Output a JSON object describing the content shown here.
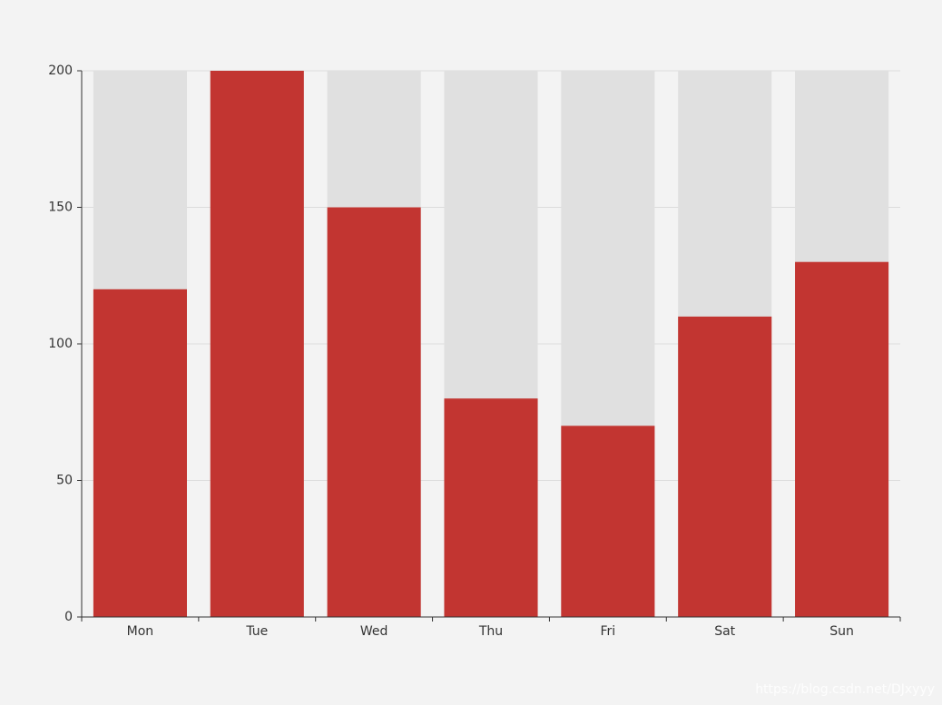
{
  "chart_data": {
    "type": "bar",
    "categories": [
      "Mon",
      "Tue",
      "Wed",
      "Thu",
      "Fri",
      "Sat",
      "Sun"
    ],
    "values": [
      120,
      200,
      150,
      80,
      70,
      110,
      130
    ],
    "color": "#c23531",
    "background_bar": true,
    "background_color": "#e0e0e0",
    "ylim": [
      0,
      200
    ],
    "yticks": [
      0,
      50,
      100,
      150,
      200
    ],
    "grid": true,
    "watermark": "https://blog.csdn.net/DJxyyy"
  }
}
